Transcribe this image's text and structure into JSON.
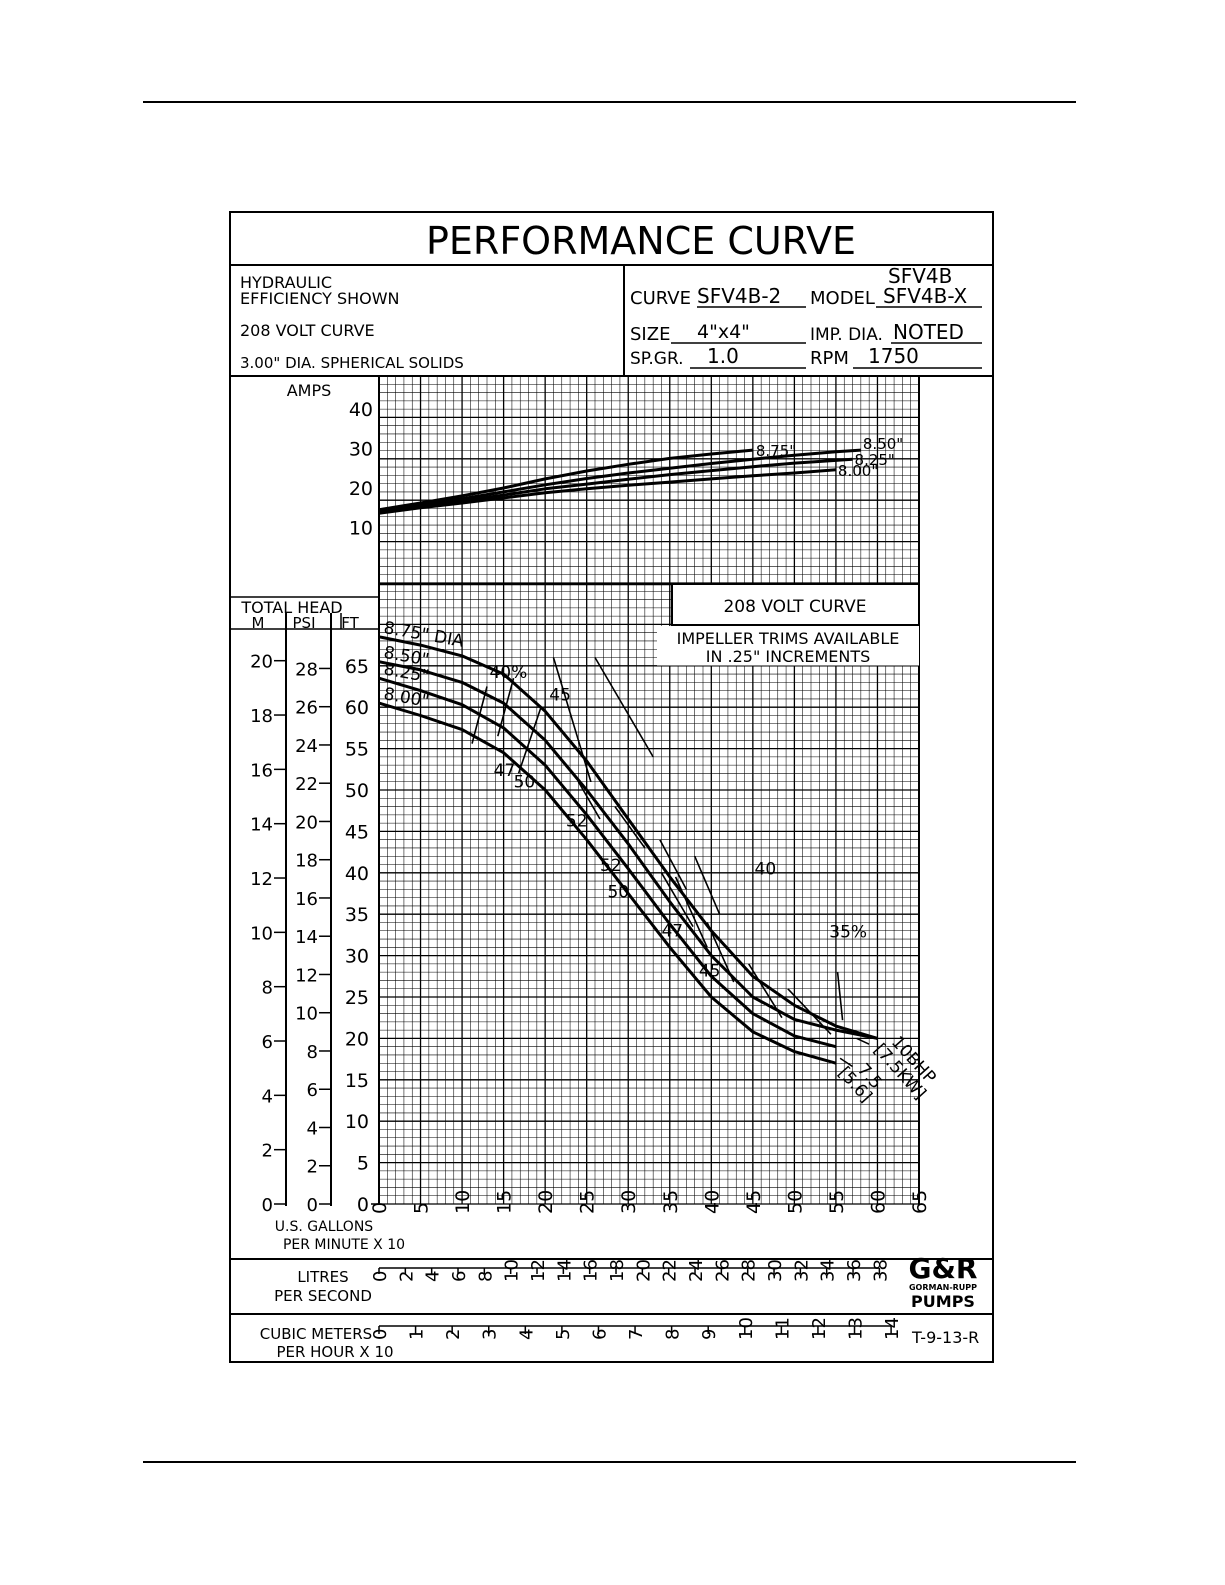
{
  "sheet": {
    "title": "PERFORMANCE CURVE",
    "notes": [
      "HYDRAULIC",
      "EFFICIENCY SHOWN",
      "208 VOLT CURVE",
      "3.00\" DIA. SPHERICAL SOLIDS"
    ],
    "curve_label": "CURVE",
    "curve": "SFV4B-2",
    "model_label": "MODEL",
    "model": [
      "SFV4B",
      "SFV4B-X"
    ],
    "size_label": "SIZE",
    "size": "4\"x4\"",
    "imp_dia_label": "IMP. DIA.",
    "imp_dia": "NOTED",
    "sp_gr_label": "SP.GR.",
    "sp_gr": "1.0",
    "rpm_label": "RPM",
    "rpm": "1750",
    "box_label": "208 VOLT CURVE",
    "trim_note": [
      "IMPELLER TRIMS AVAILABLE",
      "IN .25\" INCREMENTS"
    ],
    "logo": [
      "G&R",
      "GORMAN-RUPP",
      "PUMPS"
    ],
    "drawing_no": "T-9-13-R"
  },
  "colors": {
    "ink": "#000000",
    "paper": "#ffffff"
  },
  "chart_data": [
    {
      "type": "line",
      "title": "",
      "ylabel": "AMPS",
      "xlim": [
        0,
        65
      ],
      "ylim": [
        5,
        45
      ],
      "yticks": [
        10,
        20,
        30,
        40
      ],
      "grid": true,
      "series": [
        {
          "name": "8.75\"",
          "x": [
            0,
            5,
            10,
            15,
            20,
            25,
            30,
            35,
            40,
            45
          ],
          "y": [
            14.5,
            16.2,
            18,
            20,
            22.3,
            24.3,
            26,
            27.5,
            28.6,
            29.6
          ]
        },
        {
          "name": "8.50\"",
          "x": [
            0,
            5,
            10,
            15,
            20,
            25,
            30,
            35,
            40,
            45,
            50,
            55,
            58
          ],
          "y": [
            14.2,
            15.8,
            17.3,
            19,
            20.8,
            22.4,
            23.8,
            25,
            26.2,
            27.3,
            28.3,
            29.2,
            29.6
          ]
        },
        {
          "name": "8.25\"",
          "x": [
            0,
            5,
            10,
            15,
            20,
            25,
            30,
            35,
            40,
            45,
            50,
            55,
            57
          ],
          "y": [
            13.9,
            15.4,
            16.8,
            18.2,
            19.8,
            21,
            22.2,
            23.4,
            24.4,
            25.4,
            26.3,
            27,
            27.3
          ]
        },
        {
          "name": "8.00\"",
          "x": [
            0,
            5,
            10,
            15,
            20,
            25,
            30,
            35,
            40,
            45,
            50,
            55
          ],
          "y": [
            13.6,
            15,
            16.2,
            17.5,
            18.8,
            19.8,
            20.7,
            21.5,
            22.3,
            23.1,
            23.8,
            24.6
          ]
        }
      ]
    },
    {
      "type": "line",
      "title": "",
      "ylabel": "TOTAL HEAD",
      "axis_headers": [
        "M",
        "PSI",
        "FT"
      ],
      "ft_ticks": [
        0,
        5,
        10,
        15,
        20,
        25,
        30,
        35,
        40,
        45,
        50,
        55,
        60,
        65
      ],
      "psi_ticks": [
        0,
        2,
        4,
        6,
        8,
        10,
        12,
        14,
        16,
        18,
        20,
        22,
        24,
        26,
        28
      ],
      "m_ticks": [
        0,
        2,
        4,
        6,
        8,
        10,
        12,
        14,
        16,
        18,
        20
      ],
      "xlabel": [
        "U.S. GALLONS",
        "PER MINUTE X 10"
      ],
      "xticks": [
        0,
        5,
        10,
        15,
        20,
        25,
        30,
        35,
        40,
        45,
        50,
        55,
        60,
        65
      ],
      "xlim": [
        0,
        65
      ],
      "ylim": [
        0,
        69
      ],
      "grid": true,
      "series": [
        {
          "name": "8.75\" DIA",
          "x": [
            0,
            5,
            10,
            15,
            20,
            25,
            30,
            35,
            40,
            45,
            50,
            55,
            60
          ],
          "y": [
            68.5,
            67.5,
            66.2,
            64,
            59.5,
            53.5,
            46.5,
            39.5,
            33,
            27.5,
            24,
            21.5,
            20
          ]
        },
        {
          "name": "8.50\"",
          "x": [
            0,
            5,
            10,
            15,
            20,
            25,
            30,
            35,
            40,
            45,
            50,
            55,
            60
          ],
          "y": [
            65.5,
            64.5,
            63,
            60.5,
            56,
            50,
            43.5,
            36.5,
            30,
            25,
            22.3,
            21,
            20
          ]
        },
        {
          "name": "8.25\"",
          "x": [
            0,
            5,
            10,
            15,
            20,
            25,
            30,
            35,
            40,
            45,
            50,
            55
          ],
          "y": [
            63.5,
            62,
            60.3,
            57.5,
            53,
            47,
            40.5,
            33.8,
            27.5,
            23,
            20.3,
            19
          ]
        },
        {
          "name": "8.00\"",
          "x": [
            0,
            5,
            10,
            15,
            20,
            25,
            30,
            35,
            40,
            45,
            50,
            55
          ],
          "y": [
            60.5,
            59,
            57.3,
            54.5,
            50,
            44,
            37.5,
            31,
            25,
            20.8,
            18.4,
            17
          ]
        }
      ],
      "efficiency_labels": [
        "40%",
        "45",
        "47",
        "50",
        "52",
        "52",
        "50",
        "47",
        "45",
        "40",
        "35%"
      ],
      "power_labels": [
        "10BHP",
        "[7.5KW]",
        "7.5",
        "[5.6]"
      ]
    }
  ],
  "flow_scales": {
    "litres_label": [
      "LITRES",
      "PER SECOND"
    ],
    "litres_ticks": [
      0,
      2,
      4,
      6,
      8,
      10,
      12,
      14,
      16,
      18,
      20,
      22,
      24,
      26,
      28,
      30,
      32,
      34,
      36,
      38
    ],
    "cubic_label": [
      "CUBIC METERS",
      "PER HOUR X 10"
    ],
    "cubic_ticks": [
      0,
      1,
      2,
      3,
      4,
      5,
      6,
      7,
      8,
      9,
      10,
      11,
      12,
      13,
      14
    ]
  }
}
